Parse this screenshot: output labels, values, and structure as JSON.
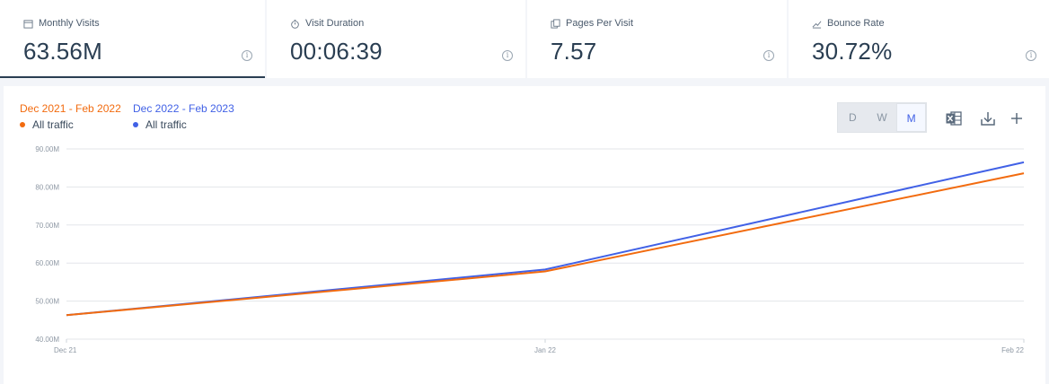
{
  "metrics": [
    {
      "label": "Monthly Visits",
      "value": "63.56M",
      "icon": "calendar-icon"
    },
    {
      "label": "Visit Duration",
      "value": "00:06:39",
      "icon": "stopwatch-icon"
    },
    {
      "label": "Pages Per Visit",
      "value": "7.57",
      "icon": "pages-icon"
    },
    {
      "label": "Bounce Rate",
      "value": "30.72%",
      "icon": "trend-up-icon"
    }
  ],
  "legend": {
    "period_a": "Dec 2021 - Feb 2022",
    "series_a": "All traffic",
    "period_b": "Dec 2022 - Feb 2023",
    "series_b": "All traffic"
  },
  "granularity": {
    "options": [
      "D",
      "W",
      "M"
    ],
    "selected": "M"
  },
  "colors": {
    "series_a": "#f26b0f",
    "series_b": "#4161e6"
  },
  "chart_data": {
    "type": "line",
    "x": [
      "Dec 21",
      "Jan 22",
      "Feb 22"
    ],
    "yticks": [
      "40.00M",
      "50.00M",
      "60.00M",
      "70.00M",
      "80.00M",
      "90.00M"
    ],
    "ylim": [
      40,
      90
    ],
    "series": [
      {
        "name": "Dec 2021 - Feb 2022",
        "values": [
          46.3,
          57.8,
          83.6
        ]
      },
      {
        "name": "Dec 2022 - Feb 2023",
        "values": [
          46.3,
          58.3,
          86.5
        ]
      }
    ],
    "grid": true,
    "legend": "top-left"
  }
}
